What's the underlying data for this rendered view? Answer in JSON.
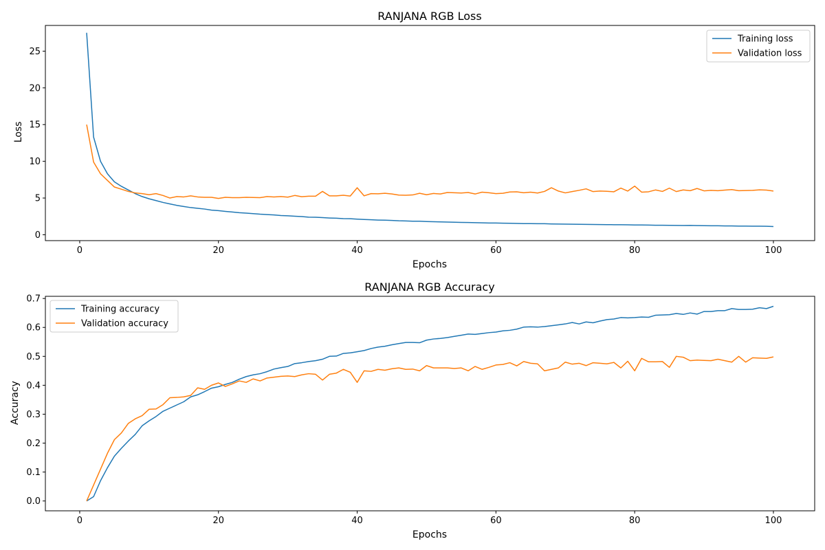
{
  "chart_data": [
    {
      "type": "line",
      "title": "RANJANA RGB Loss",
      "xlabel": "Epochs",
      "ylabel": "Loss",
      "xlim": [
        -4.95,
        105.95
      ],
      "ylim": [
        -0.8,
        28.5
      ],
      "xticks": [
        0,
        20,
        40,
        60,
        80,
        100
      ],
      "yticks": [
        0,
        5,
        10,
        15,
        20,
        25
      ],
      "grid": false,
      "legend": "top-right",
      "x": [
        1,
        2,
        3,
        4,
        5,
        6,
        7,
        8,
        9,
        10,
        11,
        12,
        13,
        14,
        15,
        16,
        17,
        18,
        19,
        20,
        21,
        22,
        23,
        24,
        25,
        26,
        27,
        28,
        29,
        30,
        31,
        32,
        33,
        34,
        35,
        36,
        37,
        38,
        39,
        40,
        41,
        42,
        43,
        44,
        45,
        46,
        47,
        48,
        49,
        50,
        51,
        52,
        53,
        54,
        55,
        56,
        57,
        58,
        59,
        60,
        61,
        62,
        63,
        64,
        65,
        66,
        67,
        68,
        69,
        70,
        71,
        72,
        73,
        74,
        75,
        76,
        77,
        78,
        79,
        80,
        81,
        82,
        83,
        84,
        85,
        86,
        87,
        88,
        89,
        90,
        91,
        92,
        93,
        94,
        95,
        96,
        97,
        98,
        99,
        100
      ],
      "series": [
        {
          "name": "Training loss",
          "color": "#1f77b4",
          "values": [
            27.5,
            13.3,
            10.0,
            8.3,
            7.2,
            6.6,
            6.1,
            5.6,
            5.2,
            4.9,
            4.65,
            4.4,
            4.2,
            4.0,
            3.85,
            3.7,
            3.6,
            3.5,
            3.35,
            3.28,
            3.18,
            3.1,
            3.0,
            2.95,
            2.88,
            2.8,
            2.75,
            2.7,
            2.62,
            2.58,
            2.52,
            2.48,
            2.4,
            2.38,
            2.33,
            2.28,
            2.25,
            2.2,
            2.18,
            2.12,
            2.08,
            2.04,
            2.0,
            1.98,
            1.95,
            1.9,
            1.88,
            1.85,
            1.84,
            1.8,
            1.78,
            1.75,
            1.73,
            1.7,
            1.68,
            1.67,
            1.65,
            1.62,
            1.6,
            1.6,
            1.58,
            1.56,
            1.54,
            1.52,
            1.52,
            1.5,
            1.5,
            1.47,
            1.46,
            1.45,
            1.44,
            1.42,
            1.41,
            1.4,
            1.39,
            1.38,
            1.37,
            1.36,
            1.35,
            1.33,
            1.33,
            1.32,
            1.3,
            1.3,
            1.28,
            1.27,
            1.26,
            1.27,
            1.25,
            1.23,
            1.22,
            1.22,
            1.2,
            1.2,
            1.18,
            1.18,
            1.17,
            1.17,
            1.15,
            1.12
          ]
        },
        {
          "name": "Validation loss",
          "color": "#ff7f0e",
          "values": [
            15.0,
            9.9,
            8.3,
            7.4,
            6.5,
            6.2,
            5.9,
            5.7,
            5.6,
            5.45,
            5.6,
            5.35,
            5.0,
            5.2,
            5.15,
            5.3,
            5.15,
            5.1,
            5.1,
            4.95,
            5.1,
            5.05,
            5.05,
            5.1,
            5.08,
            5.05,
            5.2,
            5.15,
            5.2,
            5.12,
            5.35,
            5.18,
            5.25,
            5.25,
            5.9,
            5.3,
            5.3,
            5.38,
            5.27,
            6.4,
            5.3,
            5.6,
            5.58,
            5.65,
            5.55,
            5.4,
            5.38,
            5.42,
            5.65,
            5.45,
            5.62,
            5.55,
            5.75,
            5.72,
            5.68,
            5.75,
            5.55,
            5.8,
            5.72,
            5.6,
            5.65,
            5.82,
            5.85,
            5.72,
            5.8,
            5.68,
            5.9,
            6.4,
            5.95,
            5.7,
            5.88,
            6.05,
            6.25,
            5.88,
            5.95,
            5.92,
            5.85,
            6.35,
            5.95,
            6.62,
            5.8,
            5.85,
            6.1,
            5.9,
            6.35,
            5.88,
            6.1,
            6.0,
            6.3,
            5.98,
            6.05,
            6.0,
            6.08,
            6.15,
            6.0,
            6.02,
            6.05,
            6.12,
            6.08,
            5.95
          ]
        }
      ]
    },
    {
      "type": "line",
      "title": "RANJANA RGB Accuracy",
      "xlabel": "Epochs",
      "ylabel": "Accuracy",
      "xlim": [
        -4.95,
        105.95
      ],
      "ylim": [
        -0.034,
        0.7075
      ],
      "xticks": [
        0,
        20,
        40,
        60,
        80,
        100
      ],
      "yticks": [
        0.0,
        0.1,
        0.2,
        0.3,
        0.4,
        0.5,
        0.6,
        0.7
      ],
      "grid": false,
      "legend": "top-left",
      "x": [
        1,
        2,
        3,
        4,
        5,
        6,
        7,
        8,
        9,
        10,
        11,
        12,
        13,
        14,
        15,
        16,
        17,
        18,
        19,
        20,
        21,
        22,
        23,
        24,
        25,
        26,
        27,
        28,
        29,
        30,
        31,
        32,
        33,
        34,
        35,
        36,
        37,
        38,
        39,
        40,
        41,
        42,
        43,
        44,
        45,
        46,
        47,
        48,
        49,
        50,
        51,
        52,
        53,
        54,
        55,
        56,
        57,
        58,
        59,
        60,
        61,
        62,
        63,
        64,
        65,
        66,
        67,
        68,
        69,
        70,
        71,
        72,
        73,
        74,
        75,
        76,
        77,
        78,
        79,
        80,
        81,
        82,
        83,
        84,
        85,
        86,
        87,
        88,
        89,
        90,
        91,
        92,
        93,
        94,
        95,
        96,
        97,
        98,
        99,
        100
      ],
      "series": [
        {
          "name": "Training accuracy",
          "color": "#1f77b4",
          "values": [
            0.0,
            0.015,
            0.07,
            0.115,
            0.155,
            0.182,
            0.207,
            0.23,
            0.26,
            0.277,
            0.292,
            0.31,
            0.321,
            0.332,
            0.343,
            0.36,
            0.367,
            0.378,
            0.39,
            0.395,
            0.403,
            0.41,
            0.421,
            0.43,
            0.436,
            0.44,
            0.447,
            0.456,
            0.461,
            0.465,
            0.475,
            0.478,
            0.482,
            0.485,
            0.49,
            0.5,
            0.501,
            0.51,
            0.512,
            0.516,
            0.52,
            0.527,
            0.532,
            0.535,
            0.54,
            0.544,
            0.548,
            0.548,
            0.547,
            0.556,
            0.56,
            0.562,
            0.565,
            0.569,
            0.573,
            0.577,
            0.576,
            0.579,
            0.582,
            0.584,
            0.588,
            0.59,
            0.594,
            0.601,
            0.602,
            0.601,
            0.603,
            0.606,
            0.609,
            0.612,
            0.617,
            0.612,
            0.619,
            0.616,
            0.622,
            0.627,
            0.629,
            0.634,
            0.633,
            0.634,
            0.636,
            0.635,
            0.642,
            0.643,
            0.644,
            0.648,
            0.645,
            0.65,
            0.646,
            0.655,
            0.655,
            0.658,
            0.658,
            0.665,
            0.662,
            0.662,
            0.663,
            0.668,
            0.665,
            0.673
          ]
        },
        {
          "name": "Validation accuracy",
          "color": "#ff7f0e",
          "values": [
            0.0,
            0.055,
            0.11,
            0.165,
            0.212,
            0.235,
            0.268,
            0.284,
            0.295,
            0.317,
            0.318,
            0.333,
            0.357,
            0.358,
            0.36,
            0.365,
            0.391,
            0.386,
            0.4,
            0.408,
            0.396,
            0.405,
            0.415,
            0.41,
            0.422,
            0.415,
            0.425,
            0.428,
            0.431,
            0.432,
            0.43,
            0.436,
            0.44,
            0.438,
            0.418,
            0.438,
            0.442,
            0.455,
            0.445,
            0.41,
            0.45,
            0.448,
            0.455,
            0.452,
            0.457,
            0.46,
            0.455,
            0.456,
            0.45,
            0.468,
            0.46,
            0.46,
            0.46,
            0.458,
            0.46,
            0.45,
            0.465,
            0.455,
            0.462,
            0.47,
            0.472,
            0.478,
            0.467,
            0.482,
            0.476,
            0.474,
            0.45,
            0.455,
            0.46,
            0.48,
            0.473,
            0.476,
            0.468,
            0.478,
            0.476,
            0.474,
            0.479,
            0.46,
            0.483,
            0.45,
            0.493,
            0.481,
            0.481,
            0.482,
            0.462,
            0.5,
            0.497,
            0.485,
            0.487,
            0.486,
            0.485,
            0.49,
            0.485,
            0.48,
            0.5,
            0.48,
            0.495,
            0.494,
            0.493,
            0.498
          ]
        }
      ]
    }
  ]
}
